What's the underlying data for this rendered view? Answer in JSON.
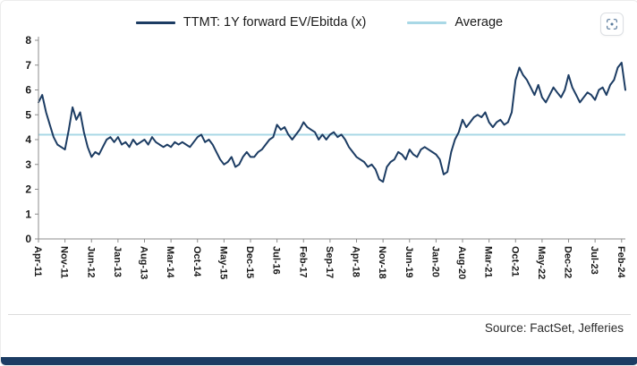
{
  "footer": {
    "source": "Source: FactSet, Jefferies"
  },
  "header": {
    "top_right_icon": "scan-icon"
  },
  "colors": {
    "series_navy": "#1c3c63",
    "average_blue": "#a9d8e6",
    "bottom_bar_navy": "#1c3c63",
    "axis_gray": "#8c8c8c"
  },
  "chart_data": {
    "type": "line",
    "title": "",
    "xlabel": "",
    "ylabel": "",
    "ylim": [
      0,
      8
    ],
    "ytick_step": 1,
    "grid": false,
    "legend_position": "top-center",
    "x_start": "Apr-2011",
    "x_end": "Mar-2024",
    "frequency": "monthly",
    "series": [
      {
        "name": "TTMT: 1Y forward EV/Ebitda (x)",
        "color": "#1c3c63",
        "values": [
          5.5,
          5.8,
          5.1,
          4.6,
          4.1,
          3.8,
          3.7,
          3.6,
          4.4,
          5.3,
          4.8,
          5.1,
          4.3,
          3.7,
          3.3,
          3.5,
          3.4,
          3.7,
          4.0,
          4.1,
          3.9,
          4.1,
          3.8,
          3.9,
          3.7,
          4.0,
          3.8,
          3.9,
          4.0,
          3.8,
          4.1,
          3.9,
          3.8,
          3.7,
          3.8,
          3.7,
          3.9,
          3.8,
          3.9,
          3.8,
          3.7,
          3.9,
          4.1,
          4.2,
          3.9,
          4.0,
          3.8,
          3.5,
          3.2,
          3.0,
          3.1,
          3.3,
          2.9,
          3.0,
          3.3,
          3.5,
          3.3,
          3.3,
          3.5,
          3.6,
          3.8,
          4.0,
          4.1,
          4.6,
          4.4,
          4.5,
          4.2,
          4.0,
          4.2,
          4.4,
          4.7,
          4.5,
          4.4,
          4.3,
          4.0,
          4.2,
          4.0,
          4.2,
          4.3,
          4.1,
          4.2,
          4.0,
          3.7,
          3.5,
          3.3,
          3.2,
          3.1,
          2.9,
          3.0,
          2.8,
          2.4,
          2.3,
          2.9,
          3.1,
          3.2,
          3.5,
          3.4,
          3.2,
          3.6,
          3.4,
          3.3,
          3.6,
          3.7,
          3.6,
          3.5,
          3.4,
          3.2,
          2.6,
          2.7,
          3.5,
          4.0,
          4.3,
          4.8,
          4.5,
          4.7,
          4.9,
          5.0,
          4.9,
          5.1,
          4.7,
          4.5,
          4.7,
          4.8,
          4.6,
          4.7,
          5.1,
          6.4,
          6.9,
          6.6,
          6.4,
          6.1,
          5.8,
          6.2,
          5.7,
          5.5,
          5.8,
          6.1,
          5.9,
          5.7,
          6.0,
          6.6,
          6.1,
          5.8,
          5.5,
          5.7,
          5.9,
          5.8,
          5.6,
          6.0,
          6.1,
          5.8,
          6.2,
          6.4,
          6.9,
          7.1,
          6.0
        ]
      },
      {
        "name": "Average",
        "color": "#a9d8e6",
        "value": 4.2
      }
    ],
    "x_ticks": [
      {
        "label": "Apr-11",
        "month_index": 0
      },
      {
        "label": "Nov-11",
        "month_index": 7
      },
      {
        "label": "Jun-12",
        "month_index": 14
      },
      {
        "label": "Jan-13",
        "month_index": 21
      },
      {
        "label": "Aug-13",
        "month_index": 28
      },
      {
        "label": "Mar-14",
        "month_index": 35
      },
      {
        "label": "Oct-14",
        "month_index": 42
      },
      {
        "label": "May-15",
        "month_index": 49
      },
      {
        "label": "Dec-15",
        "month_index": 56
      },
      {
        "label": "Jul-16",
        "month_index": 63
      },
      {
        "label": "Feb-17",
        "month_index": 70
      },
      {
        "label": "Sep-17",
        "month_index": 77
      },
      {
        "label": "Apr-18",
        "month_index": 84
      },
      {
        "label": "Nov-18",
        "month_index": 91
      },
      {
        "label": "Jun-19",
        "month_index": 98
      },
      {
        "label": "Jan-20",
        "month_index": 105
      },
      {
        "label": "Aug-20",
        "month_index": 112
      },
      {
        "label": "Mar-21",
        "month_index": 119
      },
      {
        "label": "Oct-21",
        "month_index": 126
      },
      {
        "label": "May-22",
        "month_index": 133
      },
      {
        "label": "Dec-22",
        "month_index": 140
      },
      {
        "label": "Jul-23",
        "month_index": 147
      },
      {
        "label": "Feb-24",
        "month_index": 154
      }
    ]
  }
}
